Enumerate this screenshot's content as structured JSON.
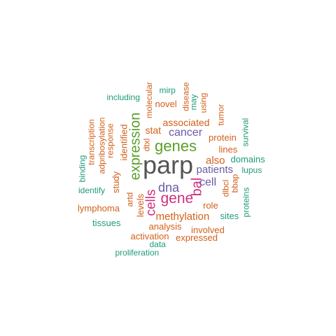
{
  "colors": {
    "gray": "#555555",
    "green": "#5a9e2a",
    "purple": "#6a5aa8",
    "magenta": "#d02e7f",
    "orange": "#d2601a",
    "teal": "#1f9a7a"
  },
  "words": [
    {
      "text": "parp",
      "color": "gray"
    },
    {
      "text": "genes",
      "color": "green"
    },
    {
      "text": "expression",
      "color": "green"
    },
    {
      "text": "gene",
      "color": "magenta"
    },
    {
      "text": "bal",
      "color": "magenta"
    },
    {
      "text": "dna",
      "color": "purple"
    },
    {
      "text": "cells",
      "color": "magenta"
    },
    {
      "text": "cancer",
      "color": "purple"
    },
    {
      "text": "patients",
      "color": "purple"
    },
    {
      "text": "cell",
      "color": "purple"
    },
    {
      "text": "methylation",
      "color": "orange"
    },
    {
      "text": "associated",
      "color": "orange"
    },
    {
      "text": "novel",
      "color": "orange"
    },
    {
      "text": "stat",
      "color": "orange"
    },
    {
      "text": "identified",
      "color": "orange"
    },
    {
      "text": "study",
      "color": "orange"
    },
    {
      "text": "also",
      "color": "orange"
    },
    {
      "text": "analysis",
      "color": "orange"
    },
    {
      "text": "involved",
      "color": "orange"
    },
    {
      "text": "expressed",
      "color": "orange"
    },
    {
      "text": "activation",
      "color": "orange"
    },
    {
      "text": "protein",
      "color": "orange"
    },
    {
      "text": "lines",
      "color": "orange"
    },
    {
      "text": "role",
      "color": "orange"
    },
    {
      "text": "response",
      "color": "orange"
    },
    {
      "text": "adpribosylation",
      "color": "orange"
    },
    {
      "text": "transcription",
      "color": "orange"
    },
    {
      "text": "lymphoma",
      "color": "orange"
    },
    {
      "text": "levels",
      "color": "orange"
    },
    {
      "text": "artd",
      "color": "orange"
    },
    {
      "text": "dtxl",
      "color": "orange"
    },
    {
      "text": "molecular",
      "color": "orange"
    },
    {
      "text": "disease",
      "color": "orange"
    },
    {
      "text": "using",
      "color": "orange"
    },
    {
      "text": "tumor",
      "color": "orange"
    },
    {
      "text": "dlbcl",
      "color": "orange"
    },
    {
      "text": "bbap",
      "color": "orange"
    },
    {
      "text": "including",
      "color": "teal"
    },
    {
      "text": "mirp",
      "color": "teal"
    },
    {
      "text": "may",
      "color": "teal"
    },
    {
      "text": "survival",
      "color": "teal"
    },
    {
      "text": "domains",
      "color": "teal"
    },
    {
      "text": "lupus",
      "color": "teal"
    },
    {
      "text": "proteins",
      "color": "teal"
    },
    {
      "text": "sites",
      "color": "teal"
    },
    {
      "text": "binding",
      "color": "teal"
    },
    {
      "text": "identify",
      "color": "teal"
    },
    {
      "text": "tissues",
      "color": "teal"
    },
    {
      "text": "data",
      "color": "teal"
    },
    {
      "text": "proliferation",
      "color": "teal"
    }
  ]
}
